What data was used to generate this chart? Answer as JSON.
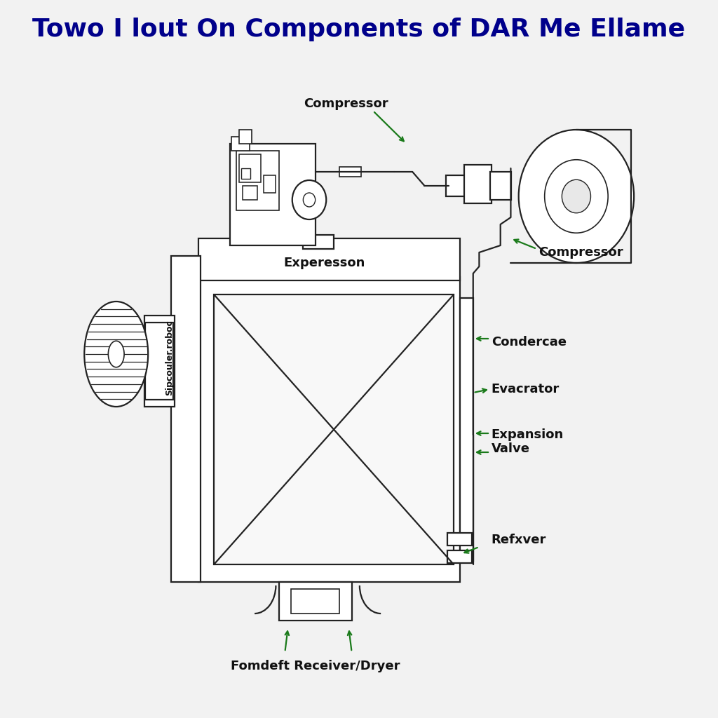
{
  "title": "Towo I lout On Components of DAR Me Ellame",
  "title_color": "#00008B",
  "title_fontsize": 26,
  "title_fontweight": "bold",
  "background_color": "#f2f2f2",
  "line_color": "#222222",
  "arrow_color": "#1a7a1a",
  "label_fontsize": 12,
  "label_fontweight": "bold",
  "label_color": "#111111",
  "labels": {
    "compressor_top": "Compressor",
    "compressor_right": "Compressor",
    "evaporator": "Experesson",
    "condenser": "Condercae",
    "evacrator": "Evacrator",
    "expansion": "Expansion\nValve",
    "receiver": "Refxver",
    "fomdeft": "Fomdeft Receiver/Dryer",
    "blower": "Sipcouler.roboc"
  }
}
